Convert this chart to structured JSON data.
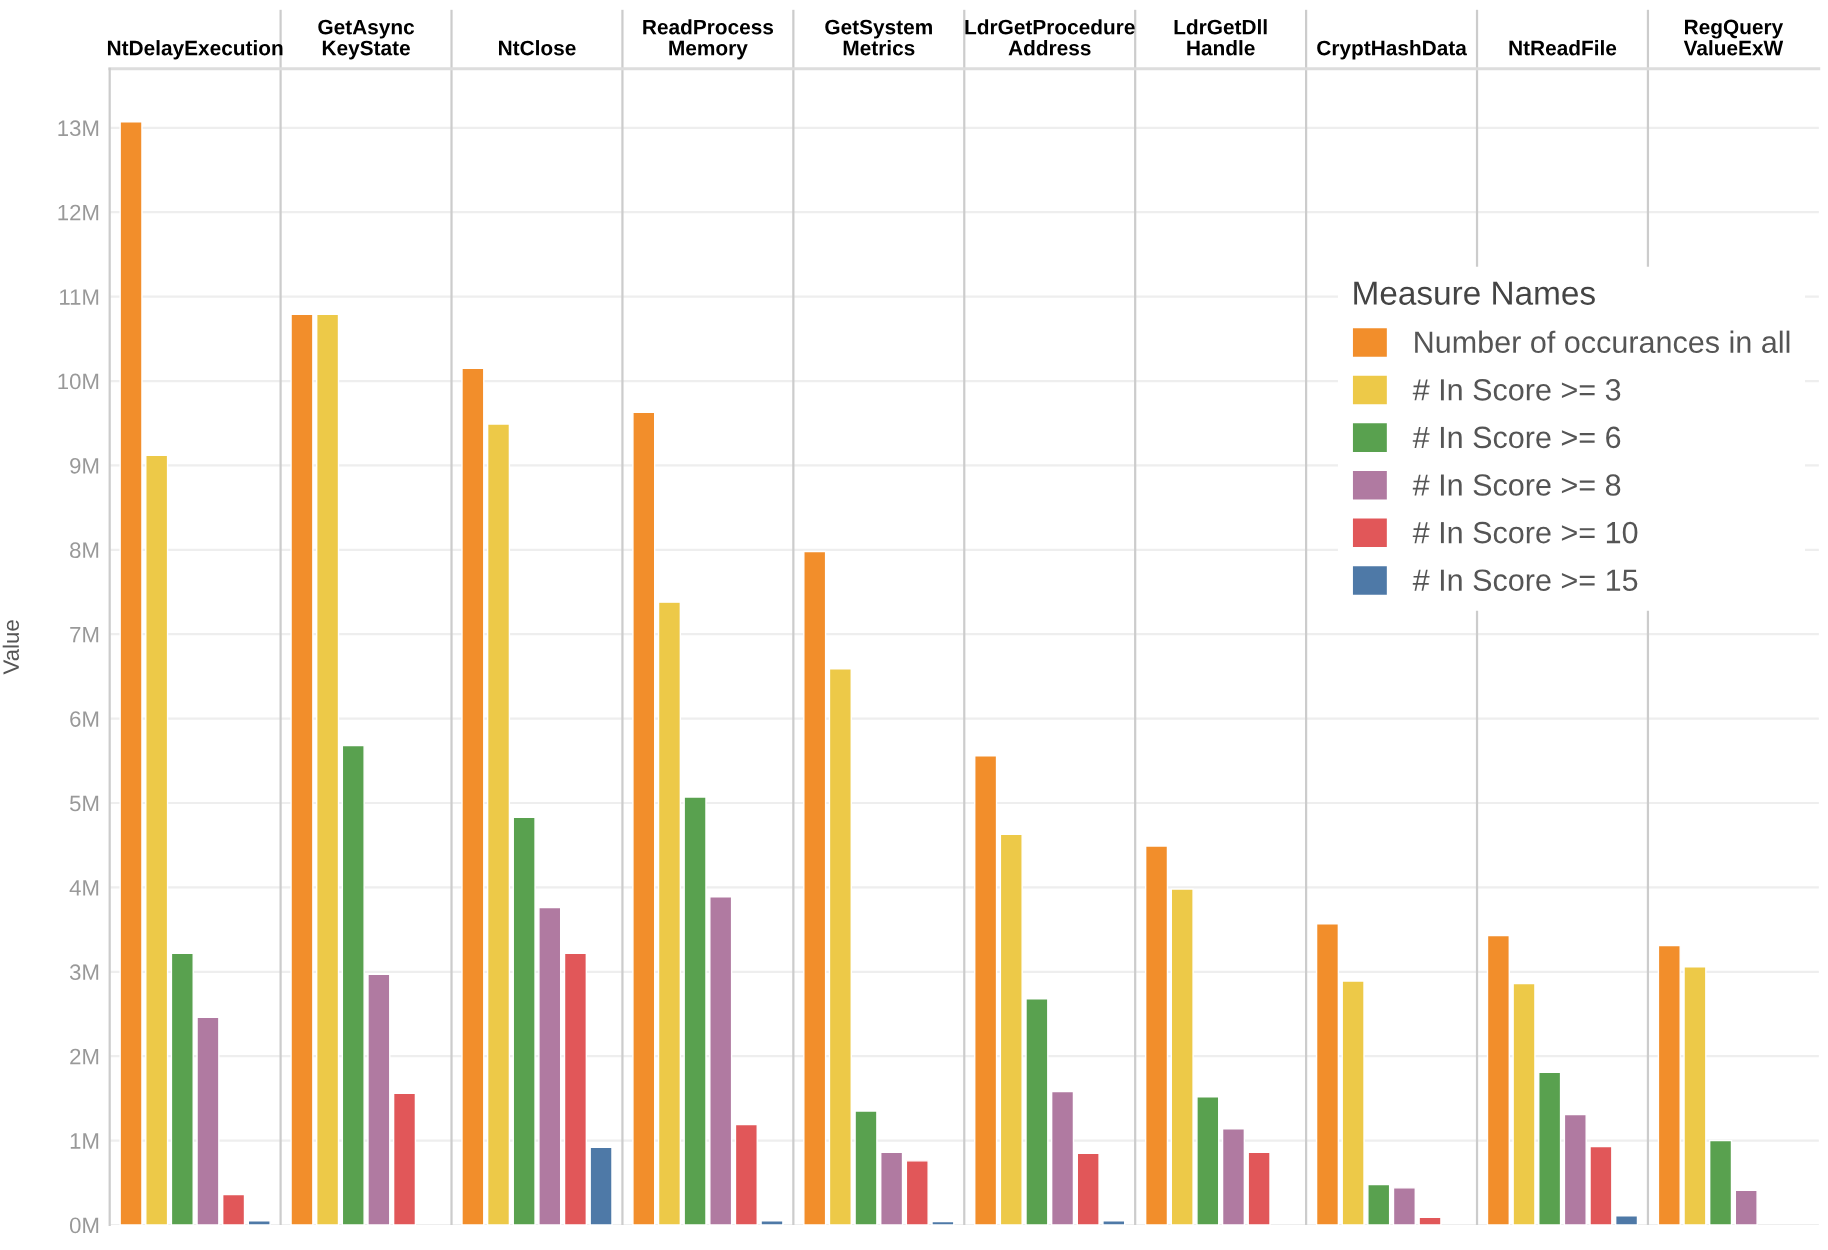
{
  "chart_data": {
    "type": "bar",
    "ylabel": "Value",
    "legend_title": "Measure Names",
    "categories": [
      "NtDelayExecution",
      "GetAsync\nKeyState",
      "NtClose",
      "ReadProcess\nMemory",
      "GetSystem\nMetrics",
      "LdrGetProcedure\nAddress",
      "LdrGetDll\nHandle",
      "CryptHashData",
      "NtReadFile",
      "RegQuery\nValueExW"
    ],
    "series": [
      {
        "name": "Number of occurances in all",
        "color": "#f28e2b",
        "values": [
          13.07,
          10.79,
          10.15,
          9.63,
          7.98,
          5.56,
          4.49,
          3.57,
          3.43,
          3.31
        ]
      },
      {
        "name": "# In Score >= 3",
        "color": "#edc948",
        "values": [
          9.12,
          10.79,
          9.49,
          7.38,
          6.59,
          4.63,
          3.98,
          2.89,
          2.86,
          3.06
        ]
      },
      {
        "name": "# In Score >= 6",
        "color": "#59a14f",
        "values": [
          3.22,
          5.68,
          4.83,
          5.07,
          1.35,
          2.68,
          1.52,
          0.48,
          1.81,
          1.0
        ]
      },
      {
        "name": "# In Score >= 8",
        "color": "#b07aa1",
        "values": [
          2.46,
          2.97,
          3.76,
          3.89,
          0.86,
          1.58,
          1.14,
          0.44,
          1.31,
          0.41
        ]
      },
      {
        "name": "# In Score >= 10",
        "color": "#e15759",
        "values": [
          0.36,
          1.56,
          3.22,
          1.19,
          0.76,
          0.85,
          0.86,
          0.09,
          0.93,
          null
        ]
      },
      {
        "name": "# In Score >= 15",
        "color": "#4e79a7",
        "values": [
          0.05,
          null,
          0.92,
          0.05,
          0.04,
          0.05,
          null,
          null,
          0.11,
          null
        ]
      }
    ],
    "ylim": [
      0,
      13.7
    ],
    "yticks": [
      {
        "value": 0,
        "label": "0M"
      },
      {
        "value": 1,
        "label": "1M"
      },
      {
        "value": 2,
        "label": "2M"
      },
      {
        "value": 3,
        "label": "3M"
      },
      {
        "value": 4,
        "label": "4M"
      },
      {
        "value": 5,
        "label": "5M"
      },
      {
        "value": 6,
        "label": "6M"
      },
      {
        "value": 7,
        "label": "7M"
      },
      {
        "value": 8,
        "label": "8M"
      },
      {
        "value": 9,
        "label": "9M"
      },
      {
        "value": 10,
        "label": "10M"
      },
      {
        "value": 11,
        "label": "11M"
      },
      {
        "value": 12,
        "label": "12M"
      },
      {
        "value": 13,
        "label": "13M"
      }
    ],
    "grid": "y",
    "legend": "right"
  }
}
